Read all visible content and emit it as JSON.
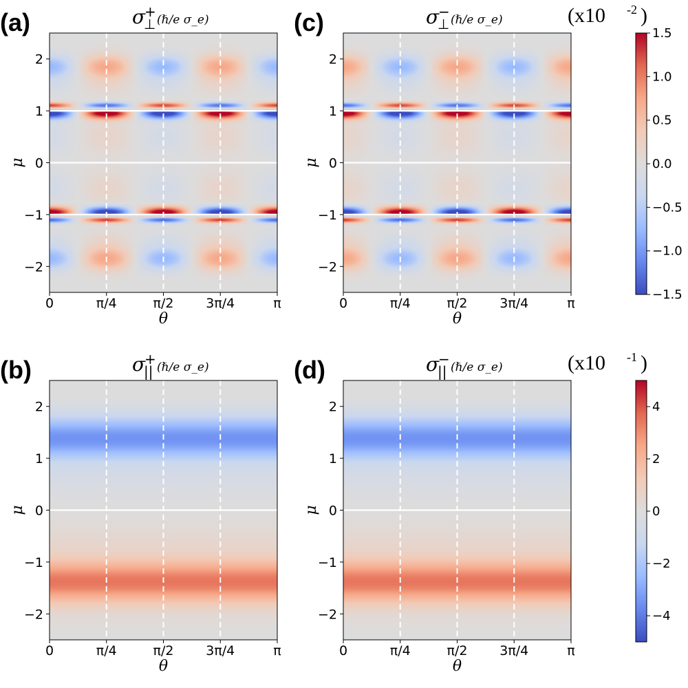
{
  "chart_data": [
    {
      "id": "a",
      "panel_label": "(a)",
      "type": "heatmap",
      "title": {
        "symbol": "σ",
        "sub": "⊥",
        "sup": "+",
        "unit": "(ℏ/e σ_e)"
      },
      "xlabel": "θ",
      "ylabel": "μ",
      "xlim": [
        0,
        3.1416
      ],
      "ylim": [
        -2.5,
        2.5
      ],
      "xticks": [
        {
          "value": 0,
          "label": "0"
        },
        {
          "value": 0.7854,
          "label": "π/4"
        },
        {
          "value": 1.5708,
          "label": "π/2"
        },
        {
          "value": 2.3562,
          "label": "3π/4"
        },
        {
          "value": 3.1416,
          "label": "π"
        }
      ],
      "yticks": [
        {
          "value": 2,
          "label": "2"
        },
        {
          "value": 1,
          "label": "1"
        },
        {
          "value": 0,
          "label": "0"
        },
        {
          "value": -1,
          "label": "−1"
        },
        {
          "value": -2,
          "label": "−2"
        }
      ],
      "dashed_lines_x": [
        0.7854,
        1.5708,
        2.3562
      ],
      "white_lines_y": [
        -1,
        0,
        1
      ],
      "model": "perp",
      "theta_sign": 1,
      "scale": 1.0,
      "colorbar": "top"
    },
    {
      "id": "c",
      "panel_label": "(c)",
      "type": "heatmap",
      "title": {
        "symbol": "σ",
        "sub": "⊥",
        "sup": "−",
        "unit": "(ℏ/e σ_e)"
      },
      "xlabel": "θ",
      "ylabel": "μ",
      "xlim": [
        0,
        3.1416
      ],
      "ylim": [
        -2.5,
        2.5
      ],
      "xticks": [
        {
          "value": 0,
          "label": "0"
        },
        {
          "value": 0.7854,
          "label": "π/4"
        },
        {
          "value": 1.5708,
          "label": "π/2"
        },
        {
          "value": 2.3562,
          "label": "3π/4"
        },
        {
          "value": 3.1416,
          "label": "π"
        }
      ],
      "yticks": [
        {
          "value": 2,
          "label": "2"
        },
        {
          "value": 1,
          "label": "1"
        },
        {
          "value": 0,
          "label": "0"
        },
        {
          "value": -1,
          "label": "−1"
        },
        {
          "value": -2,
          "label": "−2"
        }
      ],
      "dashed_lines_x": [
        0.7854,
        1.5708,
        2.3562
      ],
      "white_lines_y": [
        -1,
        0,
        1
      ],
      "model": "perp",
      "theta_sign": -1,
      "scale": 1.0,
      "colorbar": "top"
    },
    {
      "id": "b",
      "panel_label": "(b)",
      "type": "heatmap",
      "title": {
        "symbol": "σ",
        "sub": "||",
        "sup": "+",
        "unit": "(ℏ/e σ_e)"
      },
      "xlabel": "θ",
      "ylabel": "μ",
      "xlim": [
        0,
        3.1416
      ],
      "ylim": [
        -2.5,
        2.5
      ],
      "xticks": [
        {
          "value": 0,
          "label": "0"
        },
        {
          "value": 0.7854,
          "label": "π/4"
        },
        {
          "value": 1.5708,
          "label": "π/2"
        },
        {
          "value": 2.3562,
          "label": "3π/4"
        },
        {
          "value": 3.1416,
          "label": "π"
        }
      ],
      "yticks": [
        {
          "value": 2,
          "label": "2"
        },
        {
          "value": 1,
          "label": "1"
        },
        {
          "value": 0,
          "label": "0"
        },
        {
          "value": -1,
          "label": "−1"
        },
        {
          "value": -2,
          "label": "−2"
        }
      ],
      "dashed_lines_x": [
        0.7854,
        1.5708,
        2.3562
      ],
      "white_lines_y": [
        0
      ],
      "model": "par",
      "theta_sign": 1,
      "scale": 0.85,
      "colorbar": "bottom"
    },
    {
      "id": "d",
      "panel_label": "(d)",
      "type": "heatmap",
      "title": {
        "symbol": "σ",
        "sub": "||",
        "sup": "−",
        "unit": "(ℏ/e σ_e)"
      },
      "xlabel": "θ",
      "ylabel": "μ",
      "xlim": [
        0,
        3.1416
      ],
      "ylim": [
        -2.5,
        2.5
      ],
      "xticks": [
        {
          "value": 0,
          "label": "0"
        },
        {
          "value": 0.7854,
          "label": "π/4"
        },
        {
          "value": 1.5708,
          "label": "π/2"
        },
        {
          "value": 2.3562,
          "label": "3π/4"
        },
        {
          "value": 3.1416,
          "label": "π"
        }
      ],
      "yticks": [
        {
          "value": 2,
          "label": "2"
        },
        {
          "value": 1,
          "label": "1"
        },
        {
          "value": 0,
          "label": "0"
        },
        {
          "value": -1,
          "label": "−1"
        },
        {
          "value": -2,
          "label": "−2"
        }
      ],
      "dashed_lines_x": [
        0.7854,
        1.5708,
        2.3562
      ],
      "white_lines_y": [
        0
      ],
      "model": "par",
      "theta_sign": 1,
      "scale": 0.85,
      "colorbar": "bottom"
    }
  ],
  "colorbars": {
    "top": {
      "multiplier": "(x10",
      "exponent": "-2",
      "close": ")",
      "range": [
        -1.5,
        1.5
      ],
      "ticks": [
        {
          "value": 1.5,
          "label": "1.5"
        },
        {
          "value": 1.0,
          "label": "1.0"
        },
        {
          "value": 0.5,
          "label": "0.5"
        },
        {
          "value": 0.0,
          "label": "0.0"
        },
        {
          "value": -0.5,
          "label": "−0.5"
        },
        {
          "value": -1.0,
          "label": "−1.0"
        },
        {
          "value": -1.5,
          "label": "−1.5"
        }
      ]
    },
    "bottom": {
      "multiplier": "(x10",
      "exponent": "-1",
      "close": ")",
      "range": [
        -5,
        5
      ],
      "ticks": [
        {
          "value": 4,
          "label": "4"
        },
        {
          "value": 2,
          "label": "2"
        },
        {
          "value": 0,
          "label": "0"
        },
        {
          "value": -2,
          "label": "−2"
        },
        {
          "value": -4,
          "label": "−4"
        }
      ]
    }
  },
  "colormap": {
    "name": "coolwarm",
    "stops": [
      "#3b4cc0",
      "#6788ee",
      "#9abbff",
      "#c9d7f0",
      "#dddcdc",
      "#f2cbb7",
      "#f7a889",
      "#e26952",
      "#b40426"
    ]
  }
}
